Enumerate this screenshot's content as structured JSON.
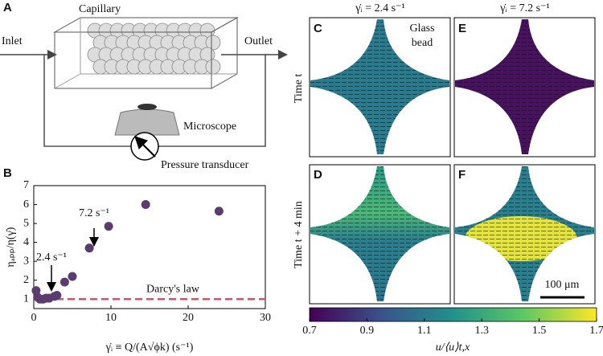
{
  "panel_labels": [
    "A",
    "B",
    "C",
    "D",
    "E",
    "F"
  ],
  "diagram": {
    "capillary": "Capillary",
    "inlet": "Inlet",
    "outlet": "Outlet",
    "microscope": "Microscope",
    "pressure_transducer": "Pressure transducer"
  },
  "flow_maps": {
    "column_titles": [
      "γ̇ᵢ = 2.4 s⁻¹",
      "γ̇ᵢ = 7.2 s⁻¹"
    ],
    "row_titles": [
      "Time t",
      "Time t + 4 min"
    ],
    "glass_bead": [
      "Glass",
      "bead"
    ],
    "scale_bar": "100 μm"
  },
  "colorbar": {
    "lim": [
      0.7,
      1.7
    ],
    "ticks": [
      0.7,
      0.9,
      1.1,
      1.3,
      1.5,
      1.7
    ],
    "label": "u/⟨u⟩t,x"
  },
  "chart_data": {
    "type": "scatter",
    "x": [
      0.3,
      0.5,
      0.8,
      1.2,
      1.6,
      2.0,
      2.7,
      3.0,
      4.0,
      5.0,
      7.2,
      9.7,
      14.5,
      24.0
    ],
    "values": [
      1.45,
      1.1,
      1.0,
      1.0,
      1.05,
      1.05,
      1.15,
      1.2,
      1.9,
      2.2,
      3.7,
      4.85,
      6.0,
      5.65
    ],
    "color": "#5a3d6e",
    "xlim": [
      0,
      30
    ],
    "ylim": [
      0.5,
      7
    ],
    "xticks": [
      0,
      10,
      20,
      30
    ],
    "yticks": [
      1,
      2,
      3,
      4,
      5,
      6,
      7
    ],
    "xlabel": "γ̇ᵢ ≡ Q/(A√ϕk) (s⁻¹)",
    "ylabel": "ηₐₚₚ/η(γ̇)",
    "annotations": [
      "7.2 s⁻¹",
      "2.4 s⁻¹"
    ],
    "reference_line": {
      "value": 1,
      "label": "Darcy's law",
      "color": "#c25a6a"
    }
  }
}
